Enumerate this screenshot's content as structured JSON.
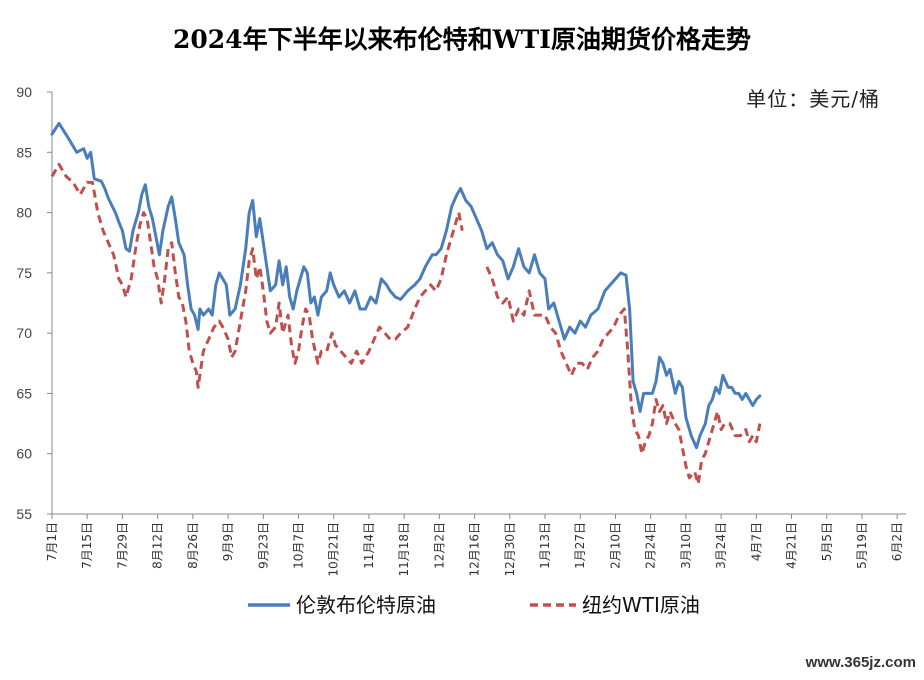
{
  "chart_data": {
    "type": "line",
    "title": "2024年下半年以来布伦特和WTI原油期货价格走势",
    "unit_label": "单位：美元/桶",
    "ylim": [
      55,
      90
    ],
    "yticks": [
      "90",
      "85",
      "80",
      "75",
      "70",
      "65",
      "60",
      "55"
    ],
    "grid": false,
    "legend_position": "bottom",
    "categories": [
      "7月1日",
      "7月15日",
      "7月29日",
      "8月12日",
      "8月26日",
      "9月9日",
      "9月23日",
      "10月7日",
      "10月21日",
      "11月4日",
      "11月18日",
      "12月2日",
      "12月16日",
      "12月30日",
      "1月13日",
      "1月27日",
      "2月10日",
      "2月24日",
      "3月10日",
      "3月24日",
      "4月7日",
      "4月21日",
      "5月5日",
      "5月19日",
      "6月2日"
    ],
    "series": [
      {
        "name": "伦敦布伦特原油",
        "color": "#4a7ebb",
        "style": "solid",
        "values": [
          [
            0,
            86.5
          ],
          [
            0.2,
            87.4
          ],
          [
            0.5,
            86.0
          ],
          [
            0.7,
            85.0
          ],
          [
            0.9,
            85.3
          ],
          [
            1.0,
            84.5
          ],
          [
            1.1,
            85.0
          ],
          [
            1.2,
            82.8
          ],
          [
            1.4,
            82.6
          ],
          [
            1.5,
            82.0
          ],
          [
            1.6,
            81.2
          ],
          [
            1.8,
            80.0
          ],
          [
            1.9,
            79.2
          ],
          [
            2.0,
            78.5
          ],
          [
            2.1,
            77.0
          ],
          [
            2.2,
            76.8
          ],
          [
            2.3,
            78.5
          ],
          [
            2.45,
            80.0
          ],
          [
            2.55,
            81.5
          ],
          [
            2.65,
            82.3
          ],
          [
            2.75,
            80.5
          ],
          [
            2.85,
            79.5
          ],
          [
            2.95,
            78.0
          ],
          [
            3.05,
            76.5
          ],
          [
            3.15,
            78.5
          ],
          [
            3.3,
            80.5
          ],
          [
            3.4,
            81.3
          ],
          [
            3.5,
            79.5
          ],
          [
            3.6,
            77.5
          ],
          [
            3.75,
            76.5
          ],
          [
            3.85,
            74.0
          ],
          [
            3.95,
            72.0
          ],
          [
            4.05,
            71.5
          ],
          [
            4.15,
            70.3
          ],
          [
            4.2,
            72.0
          ],
          [
            4.3,
            71.5
          ],
          [
            4.45,
            72.0
          ],
          [
            4.55,
            71.5
          ],
          [
            4.65,
            74.0
          ],
          [
            4.75,
            75.0
          ],
          [
            4.85,
            74.5
          ],
          [
            4.95,
            74.0
          ],
          [
            5.05,
            71.5
          ],
          [
            5.2,
            72.0
          ],
          [
            5.35,
            74.0
          ],
          [
            5.5,
            77.0
          ],
          [
            5.6,
            80.0
          ],
          [
            5.7,
            81.0
          ],
          [
            5.8,
            78.0
          ],
          [
            5.9,
            79.5
          ],
          [
            6.0,
            77.5
          ],
          [
            6.1,
            75.5
          ],
          [
            6.2,
            73.5
          ],
          [
            6.35,
            74.0
          ],
          [
            6.45,
            76.0
          ],
          [
            6.55,
            74.0
          ],
          [
            6.65,
            75.5
          ],
          [
            6.75,
            73.0
          ],
          [
            6.85,
            72.0
          ],
          [
            6.95,
            73.5
          ],
          [
            7.05,
            74.5
          ],
          [
            7.15,
            75.5
          ],
          [
            7.25,
            75.0
          ],
          [
            7.35,
            72.5
          ],
          [
            7.45,
            73.0
          ],
          [
            7.55,
            71.5
          ],
          [
            7.65,
            73.0
          ],
          [
            7.8,
            73.5
          ],
          [
            7.9,
            75.0
          ],
          [
            8.0,
            74.0
          ],
          [
            8.15,
            73.0
          ],
          [
            8.3,
            73.5
          ],
          [
            8.45,
            72.5
          ],
          [
            8.6,
            73.5
          ],
          [
            8.75,
            72.0
          ],
          [
            8.9,
            72.0
          ],
          [
            9.05,
            73.0
          ],
          [
            9.2,
            72.5
          ],
          [
            9.35,
            74.5
          ],
          [
            9.5,
            74.0
          ],
          [
            9.6,
            73.5
          ],
          [
            9.75,
            73.0
          ],
          [
            9.9,
            72.8
          ],
          [
            10.1,
            73.5
          ],
          [
            10.3,
            74.0
          ],
          [
            10.45,
            74.5
          ],
          [
            10.6,
            75.5
          ],
          [
            10.8,
            76.5
          ],
          [
            10.9,
            76.5
          ],
          [
            11.05,
            77.0
          ],
          [
            11.2,
            78.5
          ],
          [
            11.35,
            80.5
          ],
          [
            11.5,
            81.5
          ],
          [
            11.6,
            82.0
          ],
          [
            11.75,
            81.0
          ],
          [
            11.9,
            80.5
          ],
          [
            12.05,
            79.5
          ],
          [
            12.2,
            78.5
          ],
          [
            12.35,
            77.0
          ],
          [
            12.5,
            77.5
          ],
          [
            12.65,
            76.5
          ],
          [
            12.8,
            76.0
          ],
          [
            12.95,
            74.5
          ],
          [
            13.1,
            75.5
          ],
          [
            13.25,
            77.0
          ],
          [
            13.4,
            75.5
          ],
          [
            13.55,
            75.0
          ],
          [
            13.7,
            76.5
          ],
          [
            13.85,
            75.0
          ],
          [
            14.0,
            74.5
          ],
          [
            14.1,
            72.0
          ],
          [
            14.25,
            72.5
          ],
          [
            14.4,
            71.0
          ],
          [
            14.55,
            69.5
          ],
          [
            14.7,
            70.5
          ],
          [
            14.85,
            70.0
          ],
          [
            15.0,
            71.0
          ],
          [
            15.15,
            70.5
          ],
          [
            15.3,
            71.5
          ],
          [
            15.5,
            72.0
          ],
          [
            15.7,
            73.5
          ],
          [
            15.85,
            74.0
          ],
          [
            16.0,
            74.5
          ],
          [
            16.15,
            75.0
          ],
          [
            16.3,
            74.8
          ],
          [
            16.4,
            72.0
          ],
          [
            16.5,
            66.0
          ],
          [
            16.6,
            65.0
          ],
          [
            16.7,
            63.5
          ],
          [
            16.8,
            65.0
          ],
          [
            16.95,
            65.0
          ],
          [
            17.05,
            65.0
          ],
          [
            17.15,
            66.0
          ],
          [
            17.25,
            68.0
          ],
          [
            17.35,
            67.5
          ],
          [
            17.45,
            66.5
          ],
          [
            17.55,
            67.0
          ],
          [
            17.7,
            65.0
          ],
          [
            17.8,
            66.0
          ],
          [
            17.9,
            65.5
          ],
          [
            18.0,
            63.0
          ],
          [
            18.15,
            61.5
          ],
          [
            18.3,
            60.5
          ],
          [
            18.4,
            61.5
          ],
          [
            18.55,
            62.5
          ],
          [
            18.65,
            64.0
          ],
          [
            18.75,
            64.5
          ],
          [
            18.85,
            65.5
          ],
          [
            18.95,
            65.0
          ],
          [
            19.05,
            66.5
          ],
          [
            19.2,
            65.5
          ],
          [
            19.3,
            65.5
          ],
          [
            19.4,
            65.0
          ],
          [
            19.5,
            65.0
          ],
          [
            19.6,
            64.5
          ],
          [
            19.7,
            65.0
          ],
          [
            19.8,
            64.5
          ],
          [
            19.9,
            64.0
          ],
          [
            20.0,
            64.5
          ],
          [
            20.1,
            64.8
          ]
        ]
      },
      {
        "name": "纽约WTI原油",
        "color": "#c0504d",
        "style": "dashed",
        "values": [
          [
            0,
            83.0
          ],
          [
            0.2,
            84.0
          ],
          [
            0.4,
            83.0
          ],
          [
            0.6,
            82.5
          ],
          [
            0.8,
            81.5
          ],
          [
            1.0,
            82.5
          ],
          [
            1.15,
            82.5
          ],
          [
            1.3,
            80.0
          ],
          [
            1.45,
            78.5
          ],
          [
            1.6,
            77.5
          ],
          [
            1.75,
            76.5
          ],
          [
            1.9,
            74.5
          ],
          [
            2.0,
            74.0
          ],
          [
            2.1,
            73.0
          ],
          [
            2.25,
            74.5
          ],
          [
            2.4,
            77.5
          ],
          [
            2.5,
            79.0
          ],
          [
            2.6,
            80.0
          ],
          [
            2.7,
            79.5
          ],
          [
            2.8,
            77.5
          ],
          [
            2.9,
            75.5
          ],
          [
            3.0,
            74.5
          ],
          [
            3.1,
            72.5
          ],
          [
            3.2,
            74.5
          ],
          [
            3.3,
            77.0
          ],
          [
            3.4,
            77.5
          ],
          [
            3.5,
            75.0
          ],
          [
            3.6,
            73.0
          ],
          [
            3.7,
            72.5
          ],
          [
            3.8,
            71.0
          ],
          [
            3.9,
            68.5
          ],
          [
            4.0,
            67.5
          ],
          [
            4.1,
            66.8
          ],
          [
            4.15,
            65.5
          ],
          [
            4.3,
            68.5
          ],
          [
            4.45,
            69.5
          ],
          [
            4.6,
            70.5
          ],
          [
            4.75,
            71.0
          ],
          [
            4.85,
            70.5
          ],
          [
            5.0,
            69.5
          ],
          [
            5.1,
            68.0
          ],
          [
            5.2,
            68.5
          ],
          [
            5.35,
            71.0
          ],
          [
            5.5,
            73.5
          ],
          [
            5.6,
            76.0
          ],
          [
            5.7,
            77.0
          ],
          [
            5.8,
            74.5
          ],
          [
            5.9,
            75.5
          ],
          [
            6.0,
            73.5
          ],
          [
            6.1,
            71.0
          ],
          [
            6.2,
            70.0
          ],
          [
            6.35,
            70.5
          ],
          [
            6.45,
            72.5
          ],
          [
            6.55,
            70.0
          ],
          [
            6.7,
            71.5
          ],
          [
            6.8,
            69.0
          ],
          [
            6.9,
            67.5
          ],
          [
            7.0,
            68.5
          ],
          [
            7.1,
            70.5
          ],
          [
            7.2,
            72.0
          ],
          [
            7.3,
            71.5
          ],
          [
            7.4,
            69.5
          ],
          [
            7.55,
            67.5
          ],
          [
            7.65,
            68.5
          ],
          [
            7.8,
            68.5
          ],
          [
            7.95,
            70.0
          ],
          [
            8.05,
            69.0
          ],
          [
            8.2,
            68.5
          ],
          [
            8.35,
            68.0
          ],
          [
            8.5,
            67.5
          ],
          [
            8.65,
            68.5
          ],
          [
            8.8,
            67.5
          ],
          [
            9.0,
            68.5
          ],
          [
            9.15,
            69.5
          ],
          [
            9.3,
            70.5
          ],
          [
            9.45,
            70.0
          ],
          [
            9.6,
            69.5
          ],
          [
            9.75,
            69.5
          ],
          [
            9.9,
            70.0
          ],
          [
            10.1,
            70.5
          ],
          [
            10.3,
            72.0
          ],
          [
            10.45,
            73.0
          ],
          [
            10.6,
            73.5
          ],
          [
            10.75,
            74.0
          ],
          [
            10.9,
            73.5
          ],
          [
            11.05,
            74.5
          ],
          [
            11.2,
            76.5
          ],
          [
            11.35,
            78.0
          ],
          [
            11.5,
            79.5
          ],
          [
            11.55,
            80.0
          ],
          [
            11.65,
            78.5
          ]
        ]
      },
      {
        "name": "纽约WTI原油",
        "color": "#c0504d",
        "style": "dashed",
        "values": [
          [
            12.35,
            75.5
          ],
          [
            12.5,
            74.5
          ],
          [
            12.65,
            73.0
          ],
          [
            12.8,
            72.5
          ],
          [
            12.95,
            73.0
          ],
          [
            13.1,
            71.0
          ],
          [
            13.25,
            72.0
          ],
          [
            13.4,
            71.5
          ],
          [
            13.55,
            73.5
          ],
          [
            13.7,
            71.5
          ],
          [
            13.85,
            71.5
          ],
          [
            14.0,
            71.5
          ],
          [
            14.15,
            70.5
          ],
          [
            14.3,
            70.0
          ],
          [
            14.45,
            68.5
          ],
          [
            14.6,
            67.5
          ],
          [
            14.75,
            66.5
          ],
          [
            14.9,
            67.5
          ],
          [
            15.05,
            67.5
          ],
          [
            15.2,
            67.0
          ],
          [
            15.35,
            68.0
          ],
          [
            15.5,
            68.5
          ],
          [
            15.65,
            69.5
          ],
          [
            15.8,
            70.0
          ],
          [
            15.95,
            70.5
          ],
          [
            16.1,
            71.5
          ],
          [
            16.25,
            72.0
          ],
          [
            16.35,
            68.5
          ],
          [
            16.45,
            64.0
          ],
          [
            16.55,
            62.0
          ],
          [
            16.65,
            61.5
          ],
          [
            16.75,
            60.0
          ],
          [
            16.85,
            61.0
          ],
          [
            16.95,
            61.5
          ],
          [
            17.05,
            62.5
          ],
          [
            17.15,
            64.5
          ],
          [
            17.25,
            63.5
          ],
          [
            17.35,
            64.0
          ],
          [
            17.45,
            62.5
          ],
          [
            17.55,
            63.5
          ],
          [
            17.7,
            62.5
          ],
          [
            17.8,
            62.0
          ],
          [
            17.9,
            60.5
          ],
          [
            18.0,
            59.0
          ],
          [
            18.1,
            58.0
          ],
          [
            18.25,
            58.5
          ],
          [
            18.35,
            57.5
          ],
          [
            18.45,
            59.5
          ],
          [
            18.55,
            60.0
          ],
          [
            18.65,
            61.0
          ],
          [
            18.75,
            62.0
          ],
          [
            18.9,
            63.5
          ],
          [
            19.0,
            62.0
          ],
          [
            19.1,
            62.5
          ],
          [
            19.25,
            62.5
          ],
          [
            19.4,
            61.5
          ],
          [
            19.55,
            61.5
          ],
          [
            19.7,
            62.0
          ],
          [
            19.8,
            61.0
          ],
          [
            19.9,
            61.5
          ],
          [
            20.0,
            61.0
          ],
          [
            20.1,
            62.5
          ]
        ]
      }
    ],
    "legend": [
      "伦敦布伦特原油",
      "纽约WTI原油"
    ]
  },
  "watermark": "www.365jz.com"
}
